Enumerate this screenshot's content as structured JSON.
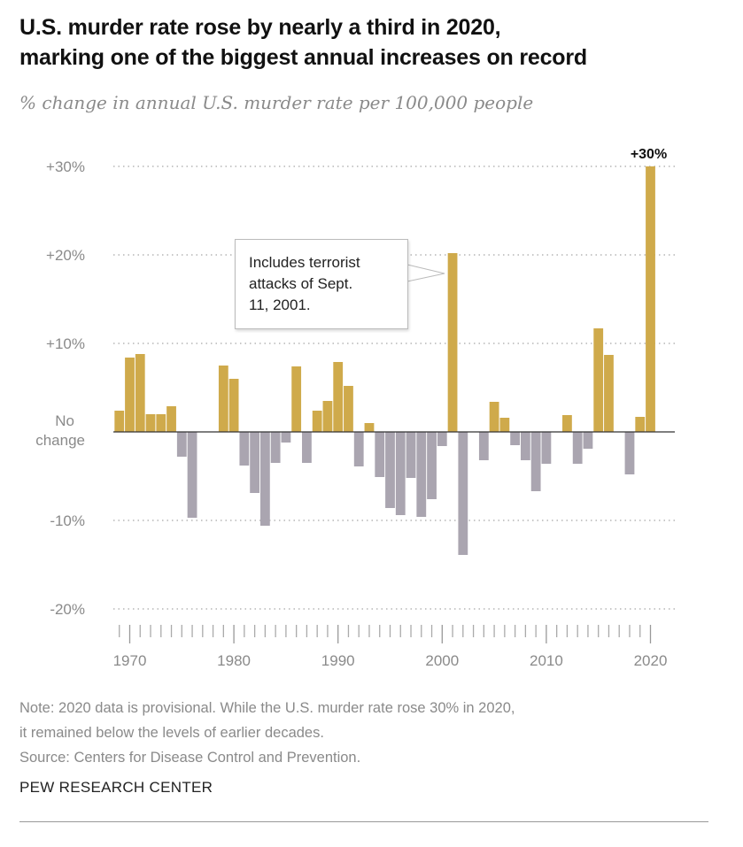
{
  "chart_data": {
    "type": "bar",
    "title": "U.S. murder rate rose by nearly a third in 2020, marking one of the biggest annual increases on record",
    "subtitle": "% change in annual U.S. murder rate per 100,000 people",
    "x": [
      1969,
      1970,
      1971,
      1972,
      1973,
      1974,
      1975,
      1976,
      1977,
      1978,
      1979,
      1980,
      1981,
      1982,
      1983,
      1984,
      1985,
      1986,
      1987,
      1988,
      1989,
      1990,
      1991,
      1992,
      1993,
      1994,
      1995,
      1996,
      1997,
      1998,
      1999,
      2000,
      2001,
      2002,
      2003,
      2004,
      2005,
      2006,
      2007,
      2008,
      2009,
      2010,
      2011,
      2012,
      2013,
      2014,
      2015,
      2016,
      2017,
      2018,
      2019,
      2020
    ],
    "values": [
      2.4,
      8.4,
      8.8,
      2.0,
      2.0,
      2.9,
      -2.8,
      -9.7,
      0,
      0,
      7.5,
      6.0,
      -3.8,
      -6.9,
      -10.6,
      -3.5,
      -1.2,
      7.4,
      -3.5,
      2.4,
      3.5,
      7.9,
      5.2,
      -3.9,
      1.0,
      -5.1,
      -8.6,
      -9.4,
      -5.2,
      -9.6,
      -7.6,
      -1.6,
      20.2,
      -13.9,
      0,
      -3.2,
      3.4,
      1.6,
      -1.5,
      -3.2,
      -6.7,
      -3.6,
      0,
      1.9,
      -3.6,
      -1.9,
      11.7,
      8.7,
      0,
      -4.8,
      1.7,
      30
    ],
    "ylim": [
      -20,
      30
    ],
    "y_ticks": [
      {
        "value": 30,
        "label": "+30%"
      },
      {
        "value": 20,
        "label": "+20%"
      },
      {
        "value": 10,
        "label": "+10%"
      },
      {
        "value": -10,
        "label": "-10%"
      },
      {
        "value": -20,
        "label": "-20%"
      }
    ],
    "zero_label": [
      "No",
      "change"
    ],
    "x_tick_labels": [
      1970,
      1980,
      1990,
      2000,
      2010,
      2020
    ],
    "grid": "dotted horizontal",
    "colors": {
      "positive": "#CFAA4B",
      "negative": "#AAA5B0"
    },
    "annotations": [
      {
        "x": 2020,
        "text": "+30%"
      },
      {
        "x": 2001,
        "text": "Includes terrorist attacks of Sept. 11, 2001.",
        "lines": [
          "Includes terrorist",
          "attacks of Sept.",
          "11, 2001."
        ]
      }
    ]
  },
  "footer": {
    "note_lines": [
      "Note: 2020 data is provisional. While the U.S. murder rate rose 30% in 2020,",
      "it remained below the levels of earlier decades."
    ],
    "source": "Source: Centers for Disease Control and Prevention.",
    "brand": "PEW RESEARCH CENTER"
  },
  "title_lines": [
    "U.S. murder rate rose by nearly a third in 2020,",
    "marking one of the biggest annual increases on record"
  ]
}
